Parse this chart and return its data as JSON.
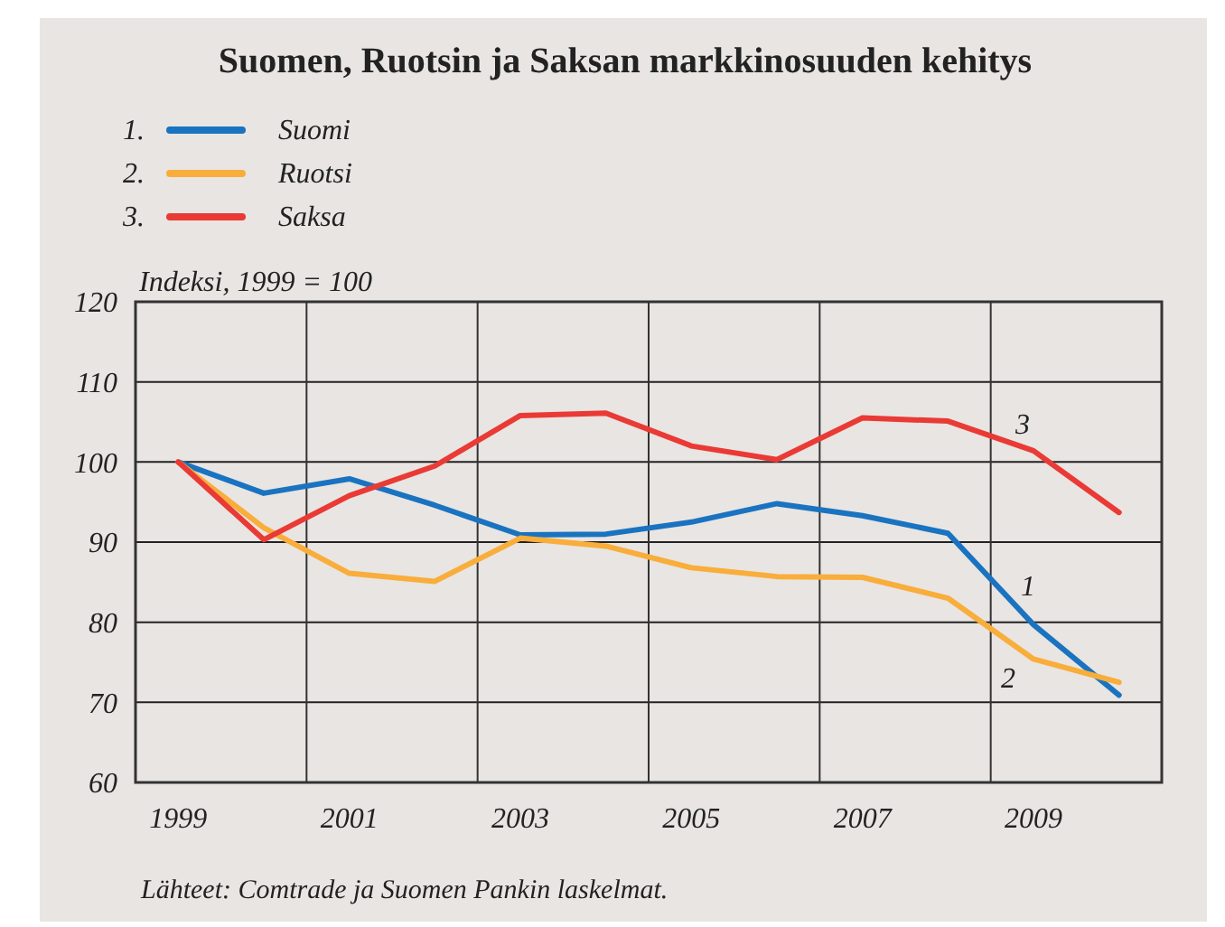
{
  "chart_data": {
    "type": "line",
    "title": "Suomen, Ruotsin ja Saksan markkinosuuden kehitys",
    "ylabel": "Indeksi, 1999 = 100",
    "x": [
      1999,
      2000,
      2001,
      2002,
      2003,
      2004,
      2005,
      2006,
      2007,
      2008,
      2009,
      2010
    ],
    "series": [
      {
        "name": "Suomi",
        "color": "#1a73c0",
        "values": [
          100,
          96.1,
          97.9,
          94.6,
          90.9,
          91.0,
          92.5,
          94.8,
          93.3,
          91.1,
          79.7,
          70.9
        ]
      },
      {
        "name": "Ruotsi",
        "color": "#f9ad3a",
        "values": [
          100,
          91.8,
          86.1,
          85.1,
          90.5,
          89.5,
          86.8,
          85.7,
          85.6,
          83.0,
          75.4,
          72.5
        ]
      },
      {
        "name": "Saksa",
        "color": "#ea3a35",
        "values": [
          100,
          90.3,
          95.8,
          99.5,
          105.8,
          106.1,
          102.0,
          100.3,
          105.5,
          105.1,
          101.4,
          93.7
        ]
      }
    ],
    "xlim": [
      1998.5,
      2010.5
    ],
    "xticks": [
      1999,
      2001,
      2003,
      2005,
      2007,
      2009,
      {
        "value": 2000.5,
        "label": null
      },
      {
        "value": 2002.5,
        "label": null
      },
      {
        "value": 2004.5,
        "label": null
      },
      {
        "value": 2006.5,
        "label": null
      },
      {
        "value": 2008.5,
        "label": null
      }
    ],
    "ylim": [
      60,
      120
    ],
    "yticks": [
      60,
      70,
      80,
      90,
      100,
      110,
      120
    ],
    "grid": true,
    "legend": "top left",
    "marker": "none",
    "line_style": "solid",
    "annotations": [
      "1.",
      "2.",
      "3.",
      "1",
      "2",
      "3",
      "Lähteet: Comtrade ja Suomen Pankin laskelmat."
    ]
  }
}
